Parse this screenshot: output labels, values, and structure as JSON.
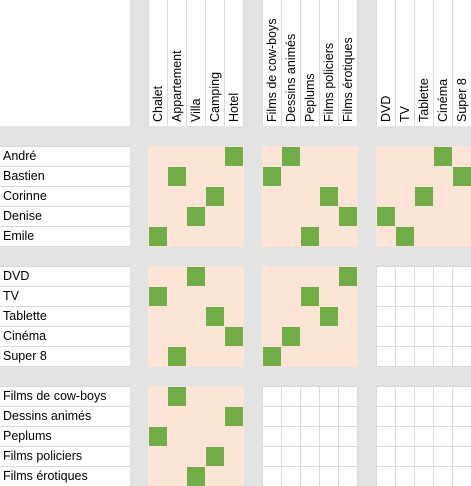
{
  "column_groups": [
    [
      "Chalet",
      "Appartement",
      "Villa",
      "Camping",
      "Hotel"
    ],
    [
      "Films de cow-boys",
      "Dessins animés",
      "Peplums",
      "Films policiers",
      "Films érotiques"
    ],
    [
      "DVD",
      "TV",
      "Tablette",
      "Cinéma",
      "Super 8"
    ]
  ],
  "row_groups": [
    [
      "André",
      "Bastien",
      "Corinne",
      "Denise",
      "Emile"
    ],
    [
      "DVD",
      "TV",
      "Tablette",
      "Cinéma",
      "Super 8"
    ],
    [
      "Films de cow-boys",
      "Dessins animés",
      "Peplums",
      "Films policiers",
      "Films érotiques"
    ]
  ],
  "grids": [
    {
      "row_group": 0,
      "column_group": 0,
      "matches": [
        4,
        1,
        3,
        2,
        0
      ]
    },
    {
      "row_group": 0,
      "column_group": 1,
      "matches": [
        1,
        0,
        3,
        4,
        2
      ]
    },
    {
      "row_group": 0,
      "column_group": 2,
      "matches": [
        3,
        4,
        2,
        0,
        1
      ]
    },
    {
      "row_group": 1,
      "column_group": 0,
      "matches": [
        2,
        0,
        3,
        4,
        1
      ]
    },
    {
      "row_group": 1,
      "column_group": 1,
      "matches": [
        4,
        2,
        3,
        1,
        0
      ]
    },
    {
      "row_group": 2,
      "column_group": 0,
      "matches": [
        1,
        4,
        0,
        3,
        2
      ]
    }
  ]
}
